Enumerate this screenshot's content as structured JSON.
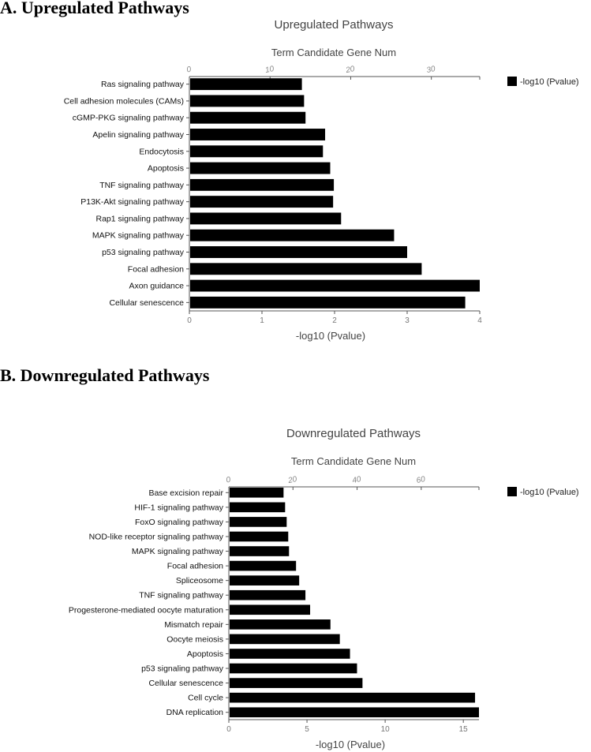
{
  "panels": [
    {
      "heading": "A.  Upregulated Pathways",
      "chart_data": {
        "type": "bar",
        "orientation": "horizontal",
        "title": "Upregulated Pathways",
        "top_axis_label": "Term Candidate Gene Num",
        "top_axis_ticks": [
          "0",
          "10",
          "20",
          "30"
        ],
        "top_axis_max": 36,
        "xlabel": "-log10 (Pvalue)",
        "xlim": [
          0,
          4
        ],
        "x_ticks": [
          0,
          1,
          2,
          3,
          4
        ],
        "legend": "-log10 (Pvalue)",
        "legend_position": "right",
        "bar_color": "#000000",
        "categories": [
          "Ras signaling pathway",
          "Cell adhesion molecules (CAMs)",
          "cGMP-PKG signaling pathway",
          "Apelin signaling pathway",
          "Endocytosis",
          "Apoptosis",
          "TNF signaling pathway",
          "P13K-Akt signaling pathway",
          "Rap1 signaling pathway",
          "MAPK signaling pathway",
          "p53 signaling pathway",
          "Focal adhesion",
          "Axon guidance",
          "Cellular senescence"
        ],
        "values": [
          1.55,
          1.58,
          1.6,
          1.87,
          1.84,
          1.94,
          1.99,
          1.98,
          2.09,
          2.82,
          3.0,
          3.2,
          4.0,
          3.8
        ]
      }
    },
    {
      "heading": "B.  Downregulated Pathways",
      "chart_data": {
        "type": "bar",
        "orientation": "horizontal",
        "title": "Downregulated Pathways",
        "top_axis_label": "Term Candidate Gene Num",
        "top_axis_ticks": [
          "0",
          "20",
          "40",
          "60"
        ],
        "top_axis_max": 78,
        "xlabel": "-log10 (Pvalue)",
        "xlim": [
          0,
          16
        ],
        "x_ticks": [
          0,
          5,
          10,
          15
        ],
        "legend": "-log10 (Pvalue)",
        "legend_position": "right",
        "bar_color": "#000000",
        "categories": [
          "Base excision repair",
          "HIF-1 signaling pathway",
          "FoxO signaling pathway",
          "NOD-like receptor signaling pathway",
          "MAPK signaling pathway",
          "Focal adhesion",
          "Spliceosome",
          "TNF signaling pathway",
          "Progesterone-mediated oocyte maturation",
          "Mismatch repair",
          "Oocyte meiosis",
          "Apoptosis",
          "p53 signaling pathway",
          "Cellular senescence",
          "Cell cycle",
          "DNA replication"
        ],
        "values": [
          3.5,
          3.6,
          3.7,
          3.8,
          3.85,
          4.3,
          4.5,
          4.9,
          5.2,
          6.5,
          7.1,
          7.75,
          8.2,
          8.55,
          15.75,
          16.0
        ]
      }
    }
  ]
}
